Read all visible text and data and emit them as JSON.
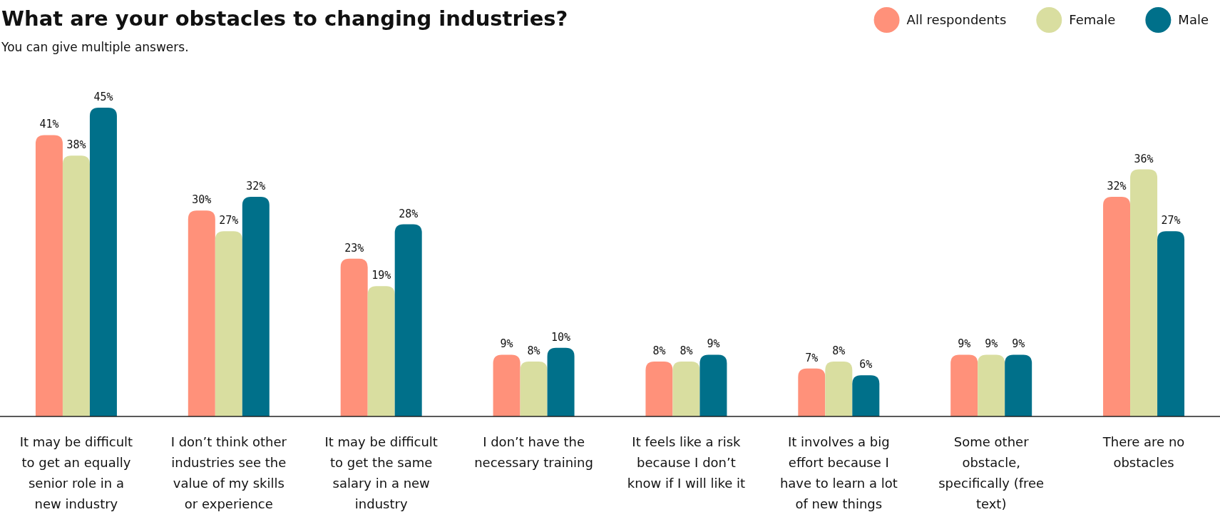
{
  "chart_data": {
    "type": "bar",
    "title": "What are your obstacles to changing industries?",
    "subtitle": "You can give multiple answers.",
    "categories": [
      "It may be difficult to get an equally senior role in a new industry",
      "I don’t think other industries see the value of my skills or experience",
      "It may be difficult to get the same salary in a new industry",
      "I don’t have the necessary training",
      "It feels like a risk because I don’t know if I will like it",
      "It involves a big effort because I have to learn a lot of new things",
      "Some other obstacle, specifically (free text)",
      "There are no obstacles"
    ],
    "series": [
      {
        "name": "All respondents",
        "color": "#ff917a",
        "values": [
          41,
          30,
          23,
          9,
          8,
          7,
          9,
          32
        ],
        "value_labels": [
          "41%",
          "30%",
          "23%",
          "9%",
          "8%",
          "7%",
          "9%",
          "32%"
        ]
      },
      {
        "name": "Female",
        "color": "#d9dea0",
        "values": [
          38,
          27,
          19,
          8,
          8,
          8,
          9,
          36
        ],
        "value_labels": [
          "38%",
          "27%",
          "19%",
          "8%",
          "8%",
          "8%",
          "9%",
          "36%"
        ]
      },
      {
        "name": "Male",
        "color": "#00708a",
        "values": [
          45,
          32,
          28,
          10,
          9,
          6,
          9,
          27
        ],
        "value_labels": [
          "45%",
          "32%",
          "28%",
          "10%",
          "9%",
          "6%",
          "9%",
          "27%"
        ]
      }
    ],
    "legend": "top right"
  }
}
